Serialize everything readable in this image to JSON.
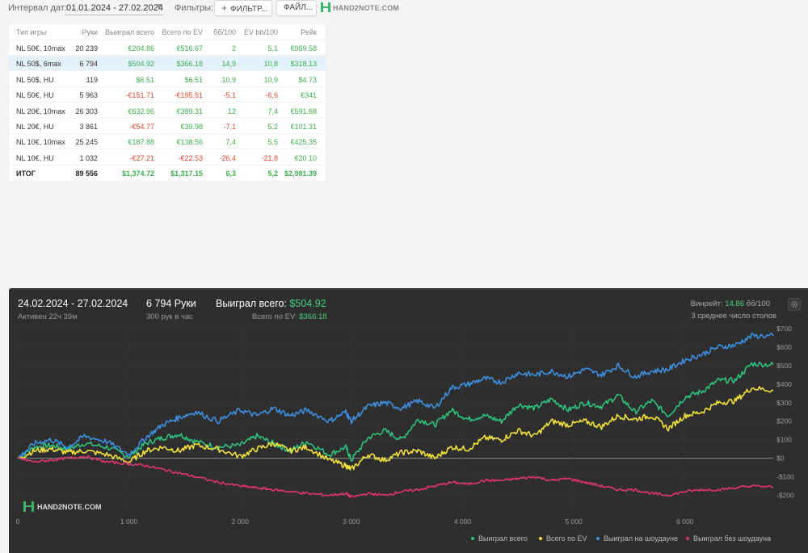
{
  "toolbar": {
    "interval_label": "Интервал дат:",
    "date_range": "01.01.2024 - 27.02.2024",
    "filters_label": "Фильтры:",
    "filter_button": "ФИЛЬТР...",
    "file_button": "ФАЙЛ...",
    "logo_text": "HAND2NOTE.COM",
    "icons": {
      "plus": "plus-icon",
      "caret": "chevron-down-icon",
      "logo": "hand2note-logo"
    }
  },
  "stats_table": {
    "columns": [
      "Тип игры",
      "Руки",
      "Выиграл всего",
      "Всего по EV",
      "бб/100",
      "EV bb/100",
      "Рейк"
    ],
    "rows": [
      {
        "game": "NL 50€, 10max",
        "hands": "20 239",
        "won": "€204.86",
        "ev": "€516.67",
        "bb100": "2",
        "evbb100": "5,1",
        "rake": "€959.58",
        "won_sign": "pos",
        "ev_sign": "pos",
        "bb_sign": "pos",
        "evbb_sign": "pos"
      },
      {
        "game": "NL 50$, 6max",
        "hands": "6 794",
        "won": "$504.92",
        "ev": "$366.18",
        "bb100": "14,9",
        "evbb100": "10,8",
        "rake": "$318.13",
        "won_sign": "pos",
        "ev_sign": "pos",
        "bb_sign": "pos",
        "evbb_sign": "pos",
        "selected": true
      },
      {
        "game": "NL 50$, HU",
        "hands": "119",
        "won": "$6.51",
        "ev": "$6.51",
        "bb100": "10,9",
        "evbb100": "10,9",
        "rake": "$4.73",
        "won_sign": "pos",
        "ev_sign": "pos",
        "bb_sign": "pos",
        "evbb_sign": "pos"
      },
      {
        "game": "NL 50€, HU",
        "hands": "5 963",
        "won": "-€151.71",
        "ev": "-€195.51",
        "bb100": "-5,1",
        "evbb100": "-6,6",
        "rake": "€341",
        "won_sign": "neg",
        "ev_sign": "neg",
        "bb_sign": "neg",
        "evbb_sign": "neg"
      },
      {
        "game": "NL 20€, 10max",
        "hands": "26 303",
        "won": "€632.96",
        "ev": "€389.31",
        "bb100": "12",
        "evbb100": "7,4",
        "rake": "€591.68",
        "won_sign": "pos",
        "ev_sign": "pos",
        "bb_sign": "pos",
        "evbb_sign": "pos"
      },
      {
        "game": "NL 20€, HU",
        "hands": "3 861",
        "won": "-€54.77",
        "ev": "€39.98",
        "bb100": "-7,1",
        "evbb100": "5,2",
        "rake": "€101.31",
        "won_sign": "neg",
        "ev_sign": "pos",
        "bb_sign": "neg",
        "evbb_sign": "pos"
      },
      {
        "game": "NL 10€, 10max",
        "hands": "25 245",
        "won": "€187.88",
        "ev": "€138.56",
        "bb100": "7,4",
        "evbb100": "5,5",
        "rake": "€425.35",
        "won_sign": "pos",
        "ev_sign": "pos",
        "bb_sign": "pos",
        "evbb_sign": "pos"
      },
      {
        "game": "NL 10€, HU",
        "hands": "1 032",
        "won": "-€27.21",
        "ev": "-€22.53",
        "bb100": "-26,4",
        "evbb100": "-21,8",
        "rake": "€20.10",
        "won_sign": "neg",
        "ev_sign": "neg",
        "bb_sign": "neg",
        "evbb_sign": "neg"
      }
    ],
    "total": {
      "game": "ИТОГ",
      "hands": "89 556",
      "won": "$1,374.72",
      "ev": "$1,317.15",
      "bb100": "6,3",
      "evbb100": "5,2",
      "rake": "$2,981.39"
    }
  },
  "session": {
    "date_range": "24.02.2024 - 27.02.2024",
    "active": "Активен 22ч 39м",
    "hands": "6 794 Руки",
    "hands_per_hour": "300 рук в час",
    "won_label": "Выиграл всего:",
    "won_value": "$504.92",
    "ev_label": "Всего по EV:",
    "ev_value": "$366.18",
    "winrate_label": "Винрейт:",
    "winrate_value": "14.86",
    "winrate_unit": "бб/100",
    "tables_text": "3 среднее число столов",
    "logo_text": "HAND2NOTE.COM"
  },
  "chart_data": {
    "type": "line",
    "xlabel": "",
    "ylabel": "",
    "xlim": [
      0,
      6794
    ],
    "ylim": [
      -250,
      700
    ],
    "x_ticks": [
      0,
      1000,
      2000,
      3000,
      4000,
      5000,
      6000
    ],
    "x_tick_labels": [
      "0",
      "1 000",
      "2 000",
      "3 000",
      "4 000",
      "5 000",
      "6 000"
    ],
    "y_ticks": [
      -200,
      -100,
      0,
      100,
      200,
      300,
      400,
      500,
      600,
      700
    ],
    "y_tick_labels": [
      "-$200",
      "-$100",
      "$0",
      "$100",
      "$200",
      "$300",
      "$400",
      "$500",
      "$600",
      "$700"
    ],
    "grid": true,
    "legend": "bottom-right",
    "series": [
      {
        "name": "Выиграл всего",
        "color": "#2ec27e",
        "x": [
          0,
          150,
          300,
          450,
          600,
          800,
          1000,
          1150,
          1300,
          1450,
          1600,
          1800,
          2000,
          2150,
          2300,
          2450,
          2600,
          2800,
          2950,
          3000,
          3150,
          3300,
          3450,
          3600,
          3750,
          3900,
          4050,
          4200,
          4350,
          4500,
          4650,
          4800,
          4950,
          5100,
          5250,
          5400,
          5550,
          5700,
          5850,
          6000,
          6150,
          6300,
          6450,
          6600,
          6794
        ],
        "y": [
          0,
          60,
          70,
          50,
          80,
          60,
          10,
          80,
          110,
          130,
          90,
          60,
          70,
          120,
          80,
          40,
          90,
          20,
          60,
          -10,
          110,
          150,
          100,
          210,
          180,
          260,
          210,
          230,
          200,
          290,
          270,
          320,
          260,
          300,
          280,
          340,
          250,
          310,
          230,
          330,
          360,
          420,
          420,
          510,
          505
        ]
      },
      {
        "name": "Всего по EV",
        "color": "#f2e03c",
        "x": [
          0,
          150,
          300,
          450,
          600,
          800,
          1000,
          1150,
          1300,
          1450,
          1600,
          1800,
          2000,
          2150,
          2300,
          2450,
          2600,
          2800,
          2950,
          3000,
          3150,
          3300,
          3450,
          3600,
          3750,
          3900,
          4050,
          4200,
          4350,
          4500,
          4650,
          4800,
          4950,
          5100,
          5250,
          5400,
          5550,
          5700,
          5850,
          6000,
          6150,
          6300,
          6450,
          6600,
          6794
        ],
        "y": [
          0,
          40,
          50,
          30,
          40,
          20,
          -20,
          40,
          60,
          40,
          70,
          50,
          10,
          50,
          80,
          40,
          60,
          -10,
          -40,
          -60,
          20,
          -10,
          30,
          40,
          0,
          60,
          50,
          110,
          100,
          150,
          120,
          200,
          180,
          200,
          170,
          230,
          210,
          230,
          160,
          230,
          250,
          300,
          310,
          380,
          366
        ]
      },
      {
        "name": "Выиграл на шоудауне",
        "color": "#3d8fe0",
        "x": [
          0,
          150,
          300,
          450,
          600,
          800,
          1000,
          1150,
          1300,
          1450,
          1600,
          1800,
          2000,
          2150,
          2300,
          2450,
          2600,
          2800,
          2950,
          3000,
          3150,
          3300,
          3450,
          3600,
          3750,
          3900,
          4050,
          4200,
          4350,
          4500,
          4650,
          4800,
          4950,
          5100,
          5250,
          5400,
          5550,
          5700,
          5850,
          6000,
          6150,
          6300,
          6450,
          6600,
          6794
        ],
        "y": [
          0,
          80,
          100,
          60,
          120,
          90,
          20,
          110,
          180,
          220,
          250,
          200,
          260,
          230,
          270,
          230,
          260,
          200,
          250,
          200,
          280,
          300,
          270,
          310,
          270,
          380,
          400,
          430,
          410,
          460,
          450,
          470,
          440,
          480,
          450,
          500,
          440,
          470,
          480,
          530,
          560,
          600,
          610,
          660,
          660
        ]
      },
      {
        "name": "Выиграл без шоудауна",
        "color": "#e0366e",
        "x": [
          0,
          150,
          300,
          450,
          600,
          800,
          1000,
          1150,
          1300,
          1450,
          1600,
          1800,
          2000,
          2150,
          2300,
          2450,
          2600,
          2800,
          2950,
          3000,
          3150,
          3300,
          3450,
          3600,
          3750,
          3900,
          4050,
          4200,
          4350,
          4500,
          4650,
          4800,
          4950,
          5100,
          5250,
          5400,
          5550,
          5700,
          5850,
          6000,
          6150,
          6300,
          6450,
          6600,
          6794
        ],
        "y": [
          0,
          -20,
          -10,
          0,
          10,
          -20,
          -30,
          -40,
          -60,
          -80,
          -100,
          -130,
          -150,
          -160,
          -170,
          -180,
          -190,
          -200,
          -190,
          -210,
          -190,
          -200,
          -180,
          -170,
          -150,
          -130,
          -140,
          -120,
          -120,
          -110,
          -100,
          -120,
          -110,
          -130,
          -150,
          -170,
          -170,
          -190,
          -200,
          -180,
          -170,
          -170,
          -160,
          -150,
          -155
        ]
      }
    ]
  }
}
